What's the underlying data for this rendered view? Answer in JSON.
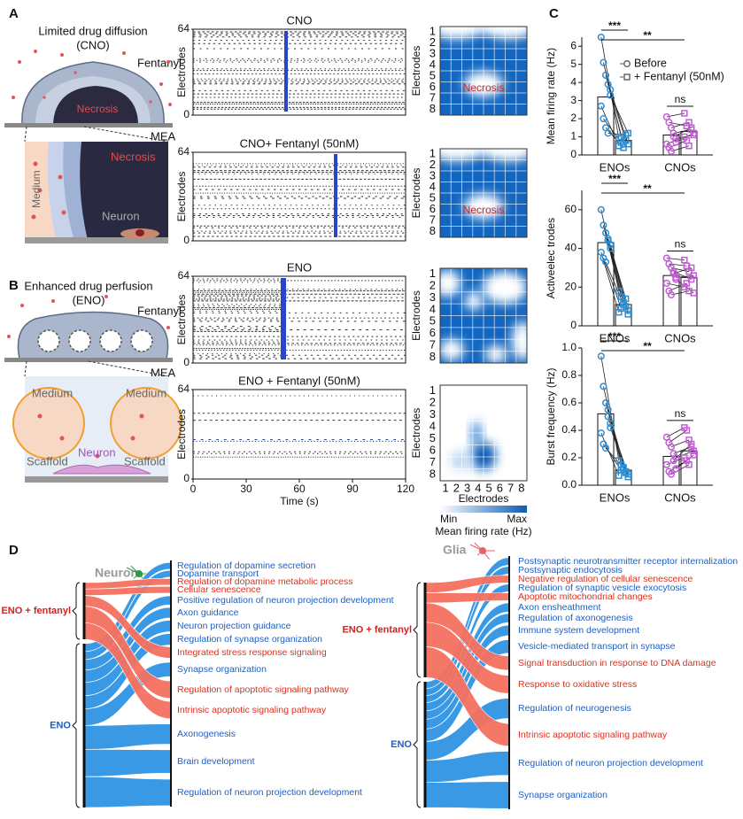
{
  "panel_labels": [
    "A",
    "B",
    "C",
    "D"
  ],
  "panel_a": {
    "title": [
      "Limited drug diffusion",
      "(CNO)"
    ],
    "fentanyl": "Fentanyl",
    "necrosis": "Necrosis",
    "mea": "MEA",
    "zoom": {
      "medium": "Medium",
      "necrosis": "Necrosis",
      "neuron": "Neuron"
    }
  },
  "panel_b": {
    "title": [
      "Enhanced drug perfusion",
      "(ENO)"
    ],
    "fentanyl": "Fentanyl",
    "mea": "MEA",
    "zoom": {
      "medium": [
        "Medium",
        "Medium"
      ],
      "scaffold": [
        "Scaffold",
        "Scaffold"
      ],
      "neuron": "Neuron"
    }
  },
  "rasters": {
    "ylabel": "Electrodes",
    "xlabel": "Time (s)",
    "xlim": [
      0,
      120
    ],
    "ylim": [
      0,
      64
    ],
    "xticks": [
      0,
      30,
      60,
      90,
      120
    ],
    "yticks": [
      0,
      64
    ],
    "plots": [
      {
        "title": "CNO"
      },
      {
        "title": "CNO+ Fentanyl (50nM)"
      },
      {
        "title": "ENO"
      },
      {
        "title": "ENO + Fentanyl (50nM)"
      }
    ]
  },
  "heatmaps": {
    "ylabel": "Electrodes",
    "xlabel": "Electrodes",
    "ticks": [
      1,
      2,
      3,
      4,
      5,
      6,
      7,
      8
    ],
    "labels": [
      "Necrosis",
      "Necrosis"
    ],
    "colorbar": {
      "min": "Min",
      "max": "Max",
      "label": "Mean firing rate (Hz)"
    }
  },
  "chart_data": [
    {
      "type": "bar",
      "ylabel": "Mean firing rate (Hz)",
      "categories": [
        "ENOs",
        "CNOs"
      ],
      "category_colors": [
        "#2a8fd8",
        "#c65bd8"
      ],
      "ylim": [
        0,
        6.5
      ],
      "yticks": [
        0,
        1,
        2,
        3,
        4,
        5,
        6
      ],
      "annotations": [
        "***",
        "**",
        "ns"
      ],
      "series": [
        {
          "name": "Before",
          "marker": "circle",
          "values": [
            3.2,
            1.1
          ],
          "points": [
            [
              6.5,
              5.1,
              4.4,
              3.9,
              3.3,
              2.7,
              2.0,
              1.5,
              1.2,
              3.6
            ],
            [
              2.1,
              1.8,
              1.5,
              1.2,
              0.9,
              0.6,
              0.4,
              0.2,
              1.0,
              0.7
            ]
          ]
        },
        {
          "name": "+ Fentanyl (50nM)",
          "marker": "square",
          "values": [
            0.8,
            1.3
          ],
          "points": [
            [
              0.9,
              1.0,
              0.6,
              0.8,
              1.2,
              0.5,
              0.7,
              0.4,
              1.1,
              0.6
            ],
            [
              2.3,
              1.6,
              1.8,
              1.4,
              1.1,
              1.0,
              0.8,
              0.5,
              1.5,
              1.2
            ]
          ]
        }
      ]
    },
    {
      "type": "bar",
      "ylabel": "Activeelec trodes",
      "categories": [
        "ENOs",
        "CNOs"
      ],
      "category_colors": [
        "#2a8fd8",
        "#c65bd8"
      ],
      "ylim": [
        0,
        70
      ],
      "yticks": [
        0,
        20,
        40,
        60
      ],
      "annotations": [
        "***",
        "**",
        "ns"
      ],
      "series": [
        {
          "marker": "circle",
          "values": [
            43,
            26
          ],
          "points": [
            [
              60,
              52,
              48,
              44,
              40,
              38,
              35,
              33,
              45,
              42
            ],
            [
              35,
              32,
              30,
              28,
              25,
              22,
              18,
              16,
              27,
              24
            ]
          ]
        },
        {
          "marker": "square",
          "values": [
            11,
            25
          ],
          "points": [
            [
              18,
              15,
              12,
              10,
              8,
              7,
              9,
              11,
              14,
              6
            ],
            [
              34,
              31,
              28,
              24,
              26,
              20,
              22,
              18,
              30,
              17
            ]
          ]
        }
      ]
    },
    {
      "type": "bar",
      "ylabel": "Burst frequency (Hz)",
      "categories": [
        "ENOs",
        "CNOs"
      ],
      "category_colors": [
        "#2a8fd8",
        "#c65bd8"
      ],
      "ylim": [
        0,
        1.0
      ],
      "yticks": [
        {
          "value": 0,
          "label": "0.0"
        },
        {
          "value": 0.2,
          "label": "0.2"
        },
        {
          "value": 0.4,
          "label": "0.4"
        },
        {
          "value": 0.6,
          "label": "0.6"
        },
        {
          "value": 0.8,
          "label": "0.8"
        },
        {
          "value": 1.0,
          "label": "1.0"
        }
      ],
      "annotations": [
        "***",
        "**",
        "ns"
      ],
      "series": [
        {
          "marker": "circle",
          "values": [
            0.52,
            0.21
          ],
          "points": [
            [
              0.94,
              0.72,
              0.6,
              0.55,
              0.45,
              0.38,
              0.3,
              0.27,
              0.5,
              0.42
            ],
            [
              0.35,
              0.31,
              0.28,
              0.23,
              0.2,
              0.15,
              0.1,
              0.08,
              0.18,
              0.12
            ]
          ]
        },
        {
          "marker": "square",
          "values": [
            0.11,
            0.25
          ],
          "points": [
            [
              0.18,
              0.15,
              0.12,
              0.1,
              0.08,
              0.07,
              0.11,
              0.13,
              0.09,
              0.06
            ],
            [
              0.42,
              0.4,
              0.33,
              0.28,
              0.25,
              0.2,
              0.18,
              0.15,
              0.3,
              0.22
            ]
          ]
        }
      ]
    }
  ],
  "sankeys": [
    {
      "header": "Neuron",
      "sources": [
        {
          "label": "ENO + fentanyl",
          "color": "#f4705f",
          "text_color": "#d42020"
        },
        {
          "label": "ENO",
          "color": "#2f93e3",
          "text_color": "#1f5fc0"
        }
      ],
      "terms": [
        {
          "label": "Regulation of dopamine secretion",
          "source": 1,
          "color": "#1f5fc0"
        },
        {
          "label": "Dopamine transport",
          "source": 1,
          "color": "#1f5fc0"
        },
        {
          "label": "Regulation of dopamine metabolic process",
          "source": 0,
          "color": "#e0301e"
        },
        {
          "label": "Cellular senescence",
          "source": 0,
          "color": "#e0301e"
        },
        {
          "label": "Positive regulation of neuron projection development",
          "source": 1,
          "color": "#1f5fc0"
        },
        {
          "label": "Axon guidance",
          "source": 1,
          "color": "#1f5fc0"
        },
        {
          "label": "Neuron projection guidance",
          "source": 1,
          "color": "#1f5fc0"
        },
        {
          "label": "Regulation of synapse organization",
          "source": 1,
          "color": "#1f5fc0"
        },
        {
          "label": "Integrated stress response signaling",
          "source": 0,
          "color": "#e0301e"
        },
        {
          "label": "Synapse organization",
          "source": 1,
          "color": "#1f5fc0"
        },
        {
          "label": "Regulation of apoptotic signaling pathway",
          "source": 0,
          "color": "#e0301e"
        },
        {
          "label": "Intrinsic apoptotic signaling pathway",
          "source": 0,
          "color": "#e0301e"
        },
        {
          "label": "Axonogenesis",
          "source": 1,
          "color": "#1f5fc0"
        },
        {
          "label": "Brain development",
          "source": 1,
          "color": "#1f5fc0"
        },
        {
          "label": "Regulation of neuron projection development",
          "source": 1,
          "color": "#1f5fc0"
        }
      ]
    },
    {
      "header": "Glia",
      "sources": [
        {
          "label": "ENO + fentanyl",
          "color": "#f4705f",
          "text_color": "#d42020"
        },
        {
          "label": "ENO",
          "color": "#2f93e3",
          "text_color": "#1f5fc0"
        }
      ],
      "terms": [
        {
          "label": "Postsynaptic neurotransmitter receptor internalization",
          "source": 1,
          "color": "#1f5fc0"
        },
        {
          "label": "Postsynaptic endocytosis",
          "source": 1,
          "color": "#1f5fc0"
        },
        {
          "label": "Negative regulation of cellular senescence",
          "source": 0,
          "color": "#e0301e"
        },
        {
          "label": "Regulation of synaptic vesicle exocytosis",
          "source": 1,
          "color": "#1f5fc0"
        },
        {
          "label": "Apoptotic mitochondrial changes",
          "source": 0,
          "color": "#e0301e"
        },
        {
          "label": "Axon ensheathment",
          "source": 1,
          "color": "#1f5fc0"
        },
        {
          "label": "Regulation of axonogenesis",
          "source": 1,
          "color": "#1f5fc0"
        },
        {
          "label": "Immune system development",
          "source": 1,
          "color": "#1f5fc0"
        },
        {
          "label": "Vesicle-mediated transport in synapse",
          "source": 1,
          "color": "#1f5fc0"
        },
        {
          "label": "Signal transduction in response to DNA damage",
          "source": 0,
          "color": "#e0301e"
        },
        {
          "label": "Response to oxidative stress",
          "source": 0,
          "color": "#e0301e"
        },
        {
          "label": "Regulation of neurogenesis",
          "source": 1,
          "color": "#1f5fc0"
        },
        {
          "label": "Intrinsic apoptotic signaling pathway",
          "source": 0,
          "color": "#e0301e"
        },
        {
          "label": "Regulation of neuron projection development",
          "source": 1,
          "color": "#1f5fc0"
        },
        {
          "label": "Synapse organization",
          "source": 1,
          "color": "#1f5fc0"
        }
      ]
    }
  ]
}
